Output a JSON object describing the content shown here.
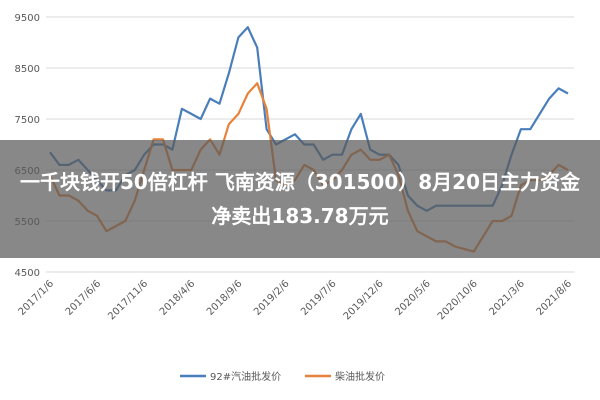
{
  "chart_data": {
    "type": "line",
    "categories": [
      "2017/1/6",
      null,
      null,
      null,
      null,
      "2017/6/6",
      null,
      null,
      null,
      null,
      "2017/11/6",
      null,
      null,
      null,
      null,
      "2018/4/6",
      null,
      null,
      null,
      null,
      "2018/9/6",
      null,
      null,
      null,
      null,
      "2019/2/6",
      null,
      null,
      null,
      null,
      "2019/7/6",
      null,
      null,
      null,
      null,
      "2019/12/6",
      null,
      null,
      null,
      null,
      "2020/5/6",
      null,
      null,
      null,
      null,
      "2020/10/6",
      null,
      null,
      null,
      null,
      "2021/3/6",
      null,
      null,
      null,
      null,
      "2021/8/6"
    ],
    "series": [
      {
        "name": "92#汽油批发价",
        "color": "#4a7ebb",
        "values": [
          6850,
          6600,
          6600,
          6700,
          6500,
          6300,
          6100,
          6100,
          6400,
          6500,
          6800,
          7000,
          7000,
          6900,
          7700,
          7600,
          7500,
          7900,
          7800,
          8400,
          9100,
          9300,
          8900,
          7300,
          7000,
          7100,
          7200,
          7000,
          7000,
          6700,
          6800,
          6800,
          7300,
          7600,
          6900,
          6800,
          6800,
          6600,
          6000,
          5800,
          5700,
          5800,
          5800,
          5800,
          5800,
          5800,
          5800,
          5800,
          6200,
          6800,
          7300,
          7300,
          7600,
          7900,
          8100,
          8000
        ]
      },
      {
        "name": "柴油批发价",
        "color": "#e6823a",
        "values": [
          6400,
          6000,
          6000,
          5900,
          5700,
          5600,
          5300,
          5400,
          5500,
          5900,
          6500,
          7100,
          7100,
          6500,
          6500,
          6500,
          6900,
          7100,
          6800,
          7400,
          7600,
          8000,
          8200,
          7700,
          6300,
          6200,
          6300,
          6600,
          6500,
          6200,
          6300,
          6500,
          6800,
          6900,
          6700,
          6700,
          6800,
          6400,
          5700,
          5300,
          5200,
          5100,
          5100,
          5000,
          4950,
          4900,
          5200,
          5500,
          5500,
          5600,
          6200,
          6300,
          6300,
          6400,
          6600,
          6500
        ]
      }
    ],
    "ylim": [
      4500,
      9500
    ],
    "yticks": [
      4500,
      5500,
      6500,
      7500,
      8500,
      9500
    ],
    "grid": true,
    "legend": "bottom"
  },
  "banner": {
    "text": "一千块钱开50倍杠杆 飞南资源（301500）8月20日主力资金净卖出183.78万元"
  }
}
